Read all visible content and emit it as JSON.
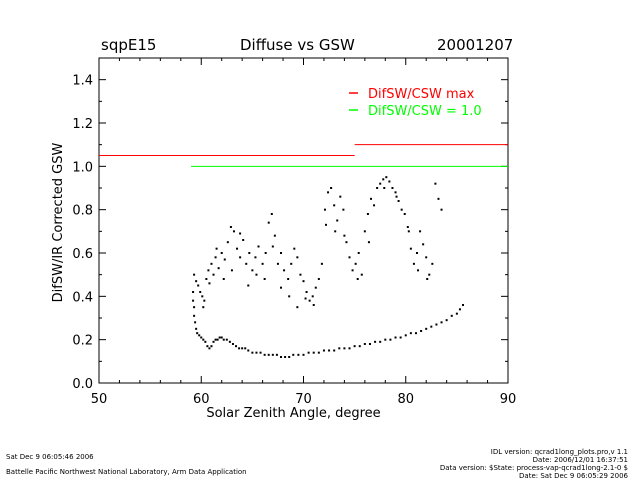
{
  "header": {
    "site": "sqpE15",
    "title": "Diffuse vs GSW",
    "date": "20001207"
  },
  "footer": {
    "left": [
      "Sat Dec  9 06:05:46 2006",
      "Battelle Pacific Northwest National Laboratory, Arm Data Application"
    ],
    "right": [
      "IDL version: qcrad1long_plots.pro,v 1.1",
      "Date: 2006/12/01 16:37:51",
      "Data version: $State: process-vap-qcrad1long-2.1-0 $",
      "Date: Sat Dec  9 06:05:29 2006"
    ]
  },
  "chart_data": {
    "type": "scatter",
    "title": "Diffuse vs GSW",
    "xlabel": "Solar Zenith Angle, degree",
    "ylabel": "DifSW/IR Corrected GSW",
    "xlim": [
      50,
      90
    ],
    "ylim": [
      0.0,
      1.5
    ],
    "xticks": [
      50,
      60,
      70,
      80,
      90
    ],
    "yticks": [
      0.0,
      0.2,
      0.4,
      0.6,
      0.8,
      1.0,
      1.2,
      1.4
    ],
    "xtick_labels": [
      "50",
      "60",
      "70",
      "80",
      "90"
    ],
    "ytick_labels": [
      "0.0",
      "0.2",
      "0.4",
      "0.6",
      "0.8",
      "1.0",
      "1.2",
      "1.4"
    ],
    "grid": false,
    "legend": {
      "placement": "top-right",
      "entries": [
        {
          "label": "DifSW/CSW max",
          "color": "#ff0000"
        },
        {
          "label": "DifSW/CSW = 1.0",
          "color": "#00ff00"
        }
      ]
    },
    "reference_lines": [
      {
        "name": "DifSW/CSW max",
        "color": "#ff0000",
        "segments": [
          {
            "x": [
              50,
              75
            ],
            "y": 1.05
          },
          {
            "x": [
              75,
              90
            ],
            "y": 1.1
          }
        ]
      },
      {
        "name": "DifSW/CSW = 1.0",
        "color": "#00ff00",
        "segments": [
          {
            "x": [
              59,
              90
            ],
            "y": 1.0
          }
        ]
      }
    ],
    "series": [
      {
        "color": "#000000",
        "points": [
          [
            59.2,
            0.42
          ],
          [
            59.2,
            0.38
          ],
          [
            59.3,
            0.35
          ],
          [
            59.3,
            0.31
          ],
          [
            59.4,
            0.28
          ],
          [
            59.5,
            0.25
          ],
          [
            59.6,
            0.23
          ],
          [
            59.8,
            0.22
          ],
          [
            60.0,
            0.21
          ],
          [
            60.2,
            0.2
          ],
          [
            60.4,
            0.19
          ],
          [
            60.6,
            0.17
          ],
          [
            60.8,
            0.16
          ],
          [
            61.0,
            0.17
          ],
          [
            61.2,
            0.19
          ],
          [
            61.4,
            0.2
          ],
          [
            61.6,
            0.2
          ],
          [
            61.8,
            0.21
          ],
          [
            62.0,
            0.21
          ],
          [
            62.2,
            0.2
          ],
          [
            62.5,
            0.2
          ],
          [
            62.8,
            0.19
          ],
          [
            63.1,
            0.18
          ],
          [
            63.4,
            0.17
          ],
          [
            63.7,
            0.16
          ],
          [
            64.0,
            0.16
          ],
          [
            64.3,
            0.16
          ],
          [
            64.6,
            0.15
          ],
          [
            65.0,
            0.14
          ],
          [
            65.4,
            0.14
          ],
          [
            65.8,
            0.14
          ],
          [
            66.2,
            0.13
          ],
          [
            66.6,
            0.13
          ],
          [
            67.0,
            0.13
          ],
          [
            67.4,
            0.13
          ],
          [
            67.8,
            0.12
          ],
          [
            68.2,
            0.12
          ],
          [
            68.6,
            0.12
          ],
          [
            69.0,
            0.13
          ],
          [
            69.5,
            0.13
          ],
          [
            70.0,
            0.13
          ],
          [
            70.5,
            0.14
          ],
          [
            71.0,
            0.14
          ],
          [
            71.5,
            0.14
          ],
          [
            72.0,
            0.15
          ],
          [
            72.5,
            0.15
          ],
          [
            73.0,
            0.15
          ],
          [
            73.5,
            0.16
          ],
          [
            74.0,
            0.16
          ],
          [
            74.5,
            0.16
          ],
          [
            75.0,
            0.17
          ],
          [
            75.5,
            0.17
          ],
          [
            76.0,
            0.18
          ],
          [
            76.5,
            0.18
          ],
          [
            77.0,
            0.19
          ],
          [
            77.5,
            0.19
          ],
          [
            78.0,
            0.2
          ],
          [
            78.5,
            0.2
          ],
          [
            79.0,
            0.21
          ],
          [
            79.5,
            0.21
          ],
          [
            80.0,
            0.22
          ],
          [
            80.5,
            0.23
          ],
          [
            81.0,
            0.23
          ],
          [
            81.5,
            0.24
          ],
          [
            82.0,
            0.25
          ],
          [
            82.5,
            0.26
          ],
          [
            83.0,
            0.27
          ],
          [
            83.5,
            0.28
          ],
          [
            84.0,
            0.29
          ],
          [
            84.5,
            0.31
          ],
          [
            85.0,
            0.32
          ],
          [
            85.3,
            0.34
          ],
          [
            85.6,
            0.36
          ],
          [
            59.3,
            0.5
          ],
          [
            59.5,
            0.47
          ],
          [
            59.7,
            0.45
          ],
          [
            59.9,
            0.42
          ],
          [
            60.1,
            0.4
          ],
          [
            60.3,
            0.38
          ],
          [
            60.5,
            0.48
          ],
          [
            60.7,
            0.52
          ],
          [
            61.0,
            0.55
          ],
          [
            61.2,
            0.5
          ],
          [
            61.4,
            0.58
          ],
          [
            61.7,
            0.53
          ],
          [
            62.0,
            0.6
          ],
          [
            62.3,
            0.57
          ],
          [
            62.6,
            0.65
          ],
          [
            62.9,
            0.72
          ],
          [
            63.2,
            0.7
          ],
          [
            63.5,
            0.62
          ],
          [
            63.8,
            0.58
          ],
          [
            64.1,
            0.66
          ],
          [
            64.4,
            0.55
          ],
          [
            64.7,
            0.6
          ],
          [
            65.0,
            0.52
          ],
          [
            65.3,
            0.58
          ],
          [
            65.6,
            0.63
          ],
          [
            66.0,
            0.55
          ],
          [
            66.3,
            0.6
          ],
          [
            66.6,
            0.74
          ],
          [
            66.9,
            0.78
          ],
          [
            67.2,
            0.68
          ],
          [
            67.5,
            0.55
          ],
          [
            67.8,
            0.6
          ],
          [
            68.1,
            0.52
          ],
          [
            68.5,
            0.48
          ],
          [
            68.8,
            0.55
          ],
          [
            69.1,
            0.62
          ],
          [
            69.4,
            0.58
          ],
          [
            69.7,
            0.5
          ],
          [
            70.0,
            0.47
          ],
          [
            70.3,
            0.42
          ],
          [
            70.6,
            0.38
          ],
          [
            70.9,
            0.4
          ],
          [
            71.2,
            0.44
          ],
          [
            71.5,
            0.48
          ],
          [
            71.8,
            0.55
          ],
          [
            72.1,
            0.8
          ],
          [
            72.4,
            0.88
          ],
          [
            72.7,
            0.9
          ],
          [
            73.0,
            0.82
          ],
          [
            73.3,
            0.75
          ],
          [
            73.6,
            0.86
          ],
          [
            73.9,
            0.8
          ],
          [
            74.2,
            0.65
          ],
          [
            74.5,
            0.58
          ],
          [
            74.8,
            0.52
          ],
          [
            75.1,
            0.55
          ],
          [
            75.4,
            0.6
          ],
          [
            75.7,
            0.5
          ],
          [
            76.0,
            0.7
          ],
          [
            76.3,
            0.78
          ],
          [
            76.6,
            0.85
          ],
          [
            76.9,
            0.82
          ],
          [
            77.2,
            0.9
          ],
          [
            77.5,
            0.92
          ],
          [
            77.8,
            0.94
          ],
          [
            78.1,
            0.95
          ],
          [
            78.4,
            0.93
          ],
          [
            78.7,
            0.9
          ],
          [
            79.0,
            0.88
          ],
          [
            79.3,
            0.84
          ],
          [
            79.6,
            0.8
          ],
          [
            79.9,
            0.78
          ],
          [
            80.2,
            0.72
          ],
          [
            80.5,
            0.62
          ],
          [
            80.8,
            0.55
          ],
          [
            81.1,
            0.6
          ],
          [
            81.4,
            0.7
          ],
          [
            81.7,
            0.64
          ],
          [
            82.0,
            0.58
          ],
          [
            82.3,
            0.5
          ],
          [
            82.6,
            0.55
          ],
          [
            82.9,
            0.92
          ],
          [
            83.2,
            0.85
          ],
          [
            83.5,
            0.8
          ],
          [
            60.2,
            0.35
          ],
          [
            60.8,
            0.46
          ],
          [
            61.5,
            0.62
          ],
          [
            62.2,
            0.48
          ],
          [
            63.0,
            0.52
          ],
          [
            63.8,
            0.69
          ],
          [
            64.6,
            0.45
          ],
          [
            65.4,
            0.5
          ],
          [
            66.2,
            0.48
          ],
          [
            67.0,
            0.63
          ],
          [
            67.8,
            0.44
          ],
          [
            68.6,
            0.4
          ],
          [
            69.4,
            0.35
          ],
          [
            70.2,
            0.39
          ],
          [
            71.0,
            0.36
          ],
          [
            72.2,
            0.73
          ],
          [
            73.1,
            0.7
          ],
          [
            74.0,
            0.68
          ],
          [
            75.3,
            0.48
          ],
          [
            76.4,
            0.65
          ],
          [
            77.9,
            0.9
          ],
          [
            79.1,
            0.86
          ],
          [
            80.3,
            0.7
          ],
          [
            81.2,
            0.52
          ],
          [
            82.1,
            0.48
          ]
        ]
      }
    ]
  }
}
